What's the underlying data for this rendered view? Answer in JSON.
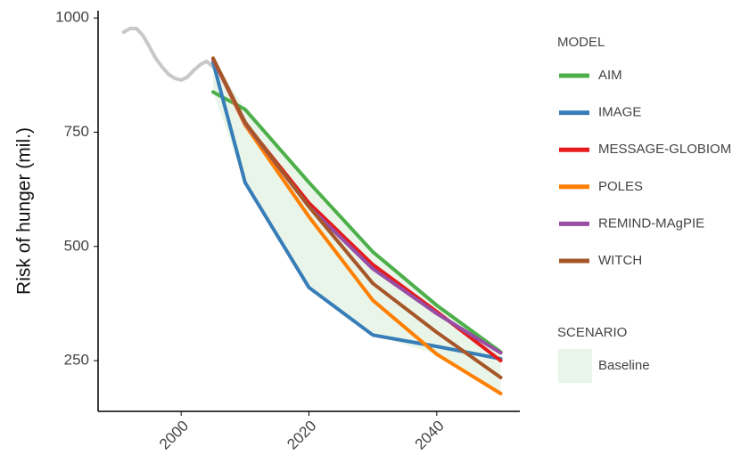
{
  "chart_data": {
    "type": "line",
    "y_label": "Risk of hunger (mil.)",
    "legend_title": "MODEL",
    "scenario_title": "SCENARIO",
    "scenario": {
      "name": "Baseline",
      "color": "#e9f5e9"
    },
    "xlim": [
      1987,
      2053
    ],
    "xticks": [
      2000,
      2020,
      2040
    ],
    "ylim": [
      139,
      1016
    ],
    "yticks": [
      250,
      500,
      750,
      1000
    ],
    "grid": false,
    "legend": "right",
    "historical": {
      "color": "#c8c8c8",
      "x": [
        1991,
        1992,
        1993,
        1994,
        1995,
        1996,
        1997,
        1998,
        1999,
        2000,
        2001,
        2002,
        2003,
        2004,
        2005
      ],
      "values": [
        969,
        977,
        977,
        962,
        938,
        912,
        893,
        877,
        868,
        864,
        871,
        886,
        898,
        905,
        893
      ]
    },
    "x": [
      2005,
      2010,
      2020,
      2030,
      2040,
      2050
    ],
    "series": [
      {
        "name": "AIM",
        "color": "#4daf4a",
        "values": [
          838,
          800,
          640,
          488,
          371,
          269
        ]
      },
      {
        "name": "IMAGE",
        "color": "#377eb8",
        "values": [
          903,
          640,
          410,
          306,
          281,
          254
        ]
      },
      {
        "name": "MESSAGE-GLOBIOM",
        "color": "#e41a1c",
        "values": [
          910,
          770,
          595,
          460,
          357,
          250
        ]
      },
      {
        "name": "POLES",
        "color": "#ff7f00",
        "values": [
          910,
          766,
          565,
          382,
          264,
          178
        ]
      },
      {
        "name": "REMIND-MAgPIE",
        "color": "#984ea3",
        "values": [
          910,
          770,
          587,
          451,
          353,
          267
        ]
      },
      {
        "name": "WITCH",
        "color": "#a65628",
        "values": [
          912,
          772,
          587,
          419,
          312,
          213
        ]
      }
    ]
  }
}
